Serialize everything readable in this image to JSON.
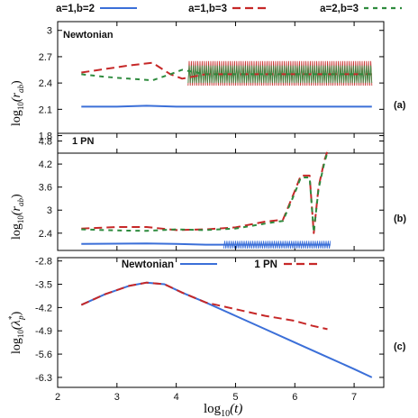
{
  "chart_data": [
    {
      "type": "line",
      "panel_tag": "(a)",
      "panel_label": "Newtonian",
      "ylabel_main": "log",
      "ylabel_sub": "10",
      "ylabel_arg": "(r",
      "ylabel_argsub": "ab",
      "ylabel_close": ")",
      "ylim": [
        1.6,
        3.1
      ],
      "yticks": [
        "3",
        "2.7",
        "2.4",
        "2.1",
        "1.8"
      ],
      "legend": [
        {
          "name": "a=1,b=2",
          "color": "#3b6fd8",
          "dash": "solid"
        },
        {
          "name": "a=1,b=3",
          "color": "#c62828",
          "dash": "long-dash"
        },
        {
          "name": "a=2,b=3",
          "color": "#2e8b3e",
          "dash": "short-dash"
        }
      ],
      "series": [
        {
          "name": "a=1,b=2",
          "x": [
            2.4,
            3.0,
            3.5,
            4.0,
            4.5,
            5.0,
            5.5,
            6.0,
            6.5,
            7.3
          ],
          "values": [
            2.13,
            2.13,
            2.14,
            2.13,
            2.13,
            2.13,
            2.13,
            2.13,
            2.13,
            2.13
          ]
        },
        {
          "name": "a=1,b=3",
          "x": [
            2.4,
            2.8,
            3.2,
            3.6,
            3.9,
            4.1,
            4.5,
            5.0,
            6.0,
            7.3
          ],
          "values": [
            2.52,
            2.56,
            2.6,
            2.63,
            2.5,
            2.45,
            2.5,
            2.5,
            2.5,
            2.5
          ],
          "band": [
            2.37,
            2.65
          ],
          "band_from": 4.2
        },
        {
          "name": "a=2,b=3",
          "x": [
            2.4,
            2.8,
            3.2,
            3.6,
            3.9,
            4.1,
            4.5,
            5.0,
            6.0,
            7.3
          ],
          "values": [
            2.5,
            2.47,
            2.45,
            2.43,
            2.5,
            2.55,
            2.5,
            2.5,
            2.5,
            2.5
          ],
          "band": [
            2.4,
            2.6
          ],
          "band_from": 4.2
        }
      ]
    },
    {
      "type": "line",
      "panel_tag": "(b)",
      "panel_label": "1 PN",
      "ylabel_main": "log",
      "ylabel_sub": "10",
      "ylabel_arg": "(r",
      "ylabel_argsub": "ab",
      "ylabel_close": ")",
      "ylim": [
        1.95,
        5.0
      ],
      "yticks": [
        "4.8",
        "4.2",
        "3.6",
        "3",
        "2.4",
        "1.8"
      ],
      "series": [
        {
          "name": "a=1,b=2",
          "x": [
            2.4,
            3.5,
            4.0,
            4.5,
            5.0,
            5.5,
            6.0,
            6.6
          ],
          "values": [
            2.12,
            2.13,
            2.12,
            2.1,
            2.1,
            2.1,
            2.1,
            2.1
          ],
          "band": [
            2.0,
            2.2
          ],
          "band_from": 4.8,
          "band_to": 6.6
        },
        {
          "name": "a=1,b=3",
          "x": [
            2.4,
            3.0,
            3.5,
            4.0,
            4.5,
            5.0,
            5.5,
            5.8,
            6.0,
            6.1,
            6.25,
            6.32,
            6.4,
            6.5,
            6.56
          ],
          "values": [
            2.52,
            2.56,
            2.56,
            2.48,
            2.5,
            2.55,
            2.7,
            2.75,
            3.5,
            3.9,
            3.9,
            2.4,
            3.6,
            4.3,
            4.58
          ]
        },
        {
          "name": "a=2,b=3",
          "x": [
            2.4,
            3.0,
            3.5,
            4.0,
            4.5,
            5.0,
            5.5,
            5.8,
            6.0,
            6.1,
            6.25,
            6.32,
            6.4,
            6.5,
            6.56
          ],
          "values": [
            2.5,
            2.47,
            2.46,
            2.5,
            2.48,
            2.52,
            2.65,
            2.72,
            3.45,
            3.85,
            3.85,
            2.42,
            3.55,
            4.25,
            4.55
          ]
        }
      ]
    },
    {
      "type": "line",
      "panel_tag": "(c)",
      "ylabel_main": "log",
      "ylabel_sub": "10",
      "ylabel_arg": "(λ",
      "ylabel_argsup": "*",
      "ylabel_argsub": "p",
      "ylabel_close": ")",
      "xlabel_main": "log",
      "xlabel_sub": "10",
      "xlabel_arg": "(t)",
      "ylim": [
        -6.6,
        -2.7
      ],
      "yticks": [
        "-2.8",
        "-3.5",
        "-4.2",
        "-4.9",
        "-5.6",
        "-6.3"
      ],
      "xticks": [
        "2",
        "3",
        "4",
        "5",
        "6",
        "7"
      ],
      "xlim": [
        2,
        7.5
      ],
      "legend": [
        {
          "name": "Newtonian",
          "color": "#3b6fd8",
          "dash": "solid"
        },
        {
          "name": "1 PN",
          "color": "#c62828",
          "dash": "long-dash"
        }
      ],
      "series": [
        {
          "name": "Newtonian",
          "x": [
            2.4,
            2.8,
            3.2,
            3.5,
            3.8,
            4.1,
            4.5,
            5.0,
            5.5,
            6.0,
            6.5,
            7.0,
            7.3
          ],
          "values": [
            -4.12,
            -3.8,
            -3.55,
            -3.45,
            -3.5,
            -3.75,
            -4.05,
            -4.45,
            -4.85,
            -5.25,
            -5.65,
            -6.05,
            -6.3
          ]
        },
        {
          "name": "1 PN",
          "x": [
            2.4,
            2.8,
            3.2,
            3.5,
            3.8,
            4.1,
            4.5,
            5.0,
            5.5,
            6.0,
            6.3,
            6.55
          ],
          "values": [
            -4.12,
            -3.8,
            -3.55,
            -3.45,
            -3.5,
            -3.75,
            -4.05,
            -4.25,
            -4.45,
            -4.6,
            -4.75,
            -4.85
          ]
        }
      ]
    }
  ]
}
